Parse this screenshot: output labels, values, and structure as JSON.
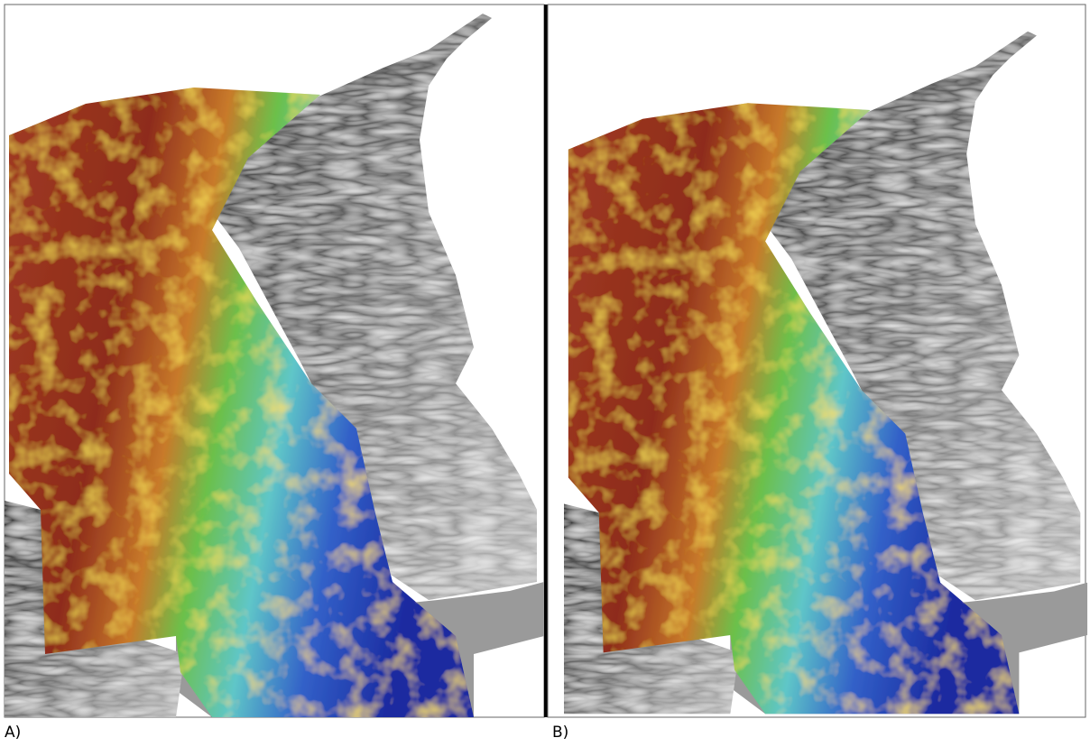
{
  "panels": [
    {
      "label": "A)"
    },
    {
      "label": "B)"
    }
  ]
}
